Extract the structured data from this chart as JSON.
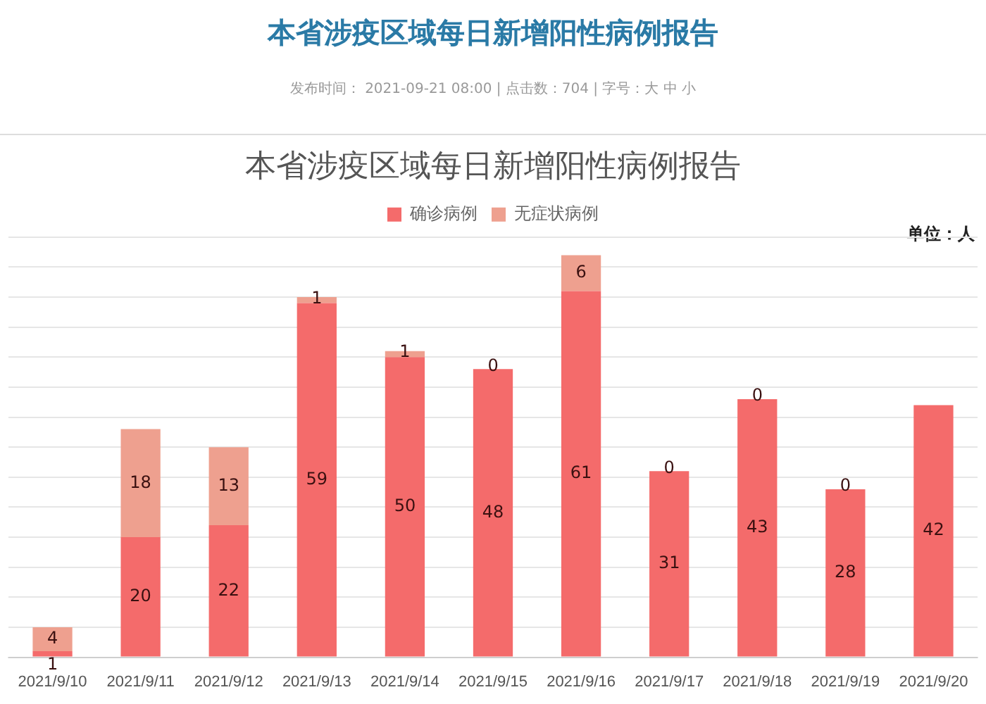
{
  "chart_data": {
    "type": "bar",
    "title": "本省涉疫区域每日新增阳性病例报告",
    "subtitle": "发布时间： 2021-09-21 08:00 | 点击数：704 | 字号：大 中 小",
    "annotations": [
      "本省涉疫区域每日新增阳性病例报告",
      "单位：人"
    ],
    "categories": [
      "2021/9/10",
      "2021/9/11",
      "2021/9/12",
      "2021/9/13",
      "2021/9/14",
      "2021/9/15",
      "2021/9/16",
      "2021/9/17",
      "2021/9/18",
      "2021/9/19",
      "2021/9/20"
    ],
    "stacked": true,
    "series": [
      {
        "name": "确诊病例",
        "color": "#f46b6b",
        "values": [
          1,
          20,
          22,
          59,
          50,
          48,
          61,
          31,
          43,
          28,
          42
        ]
      },
      {
        "name": "无症状病例",
        "color": "#eea08f",
        "values": [
          4,
          18,
          13,
          1,
          1,
          0,
          6,
          0,
          0,
          0,
          null
        ]
      }
    ],
    "data_labels": true,
    "grid": "y",
    "legend": "top",
    "tick_labels": "x"
  }
}
